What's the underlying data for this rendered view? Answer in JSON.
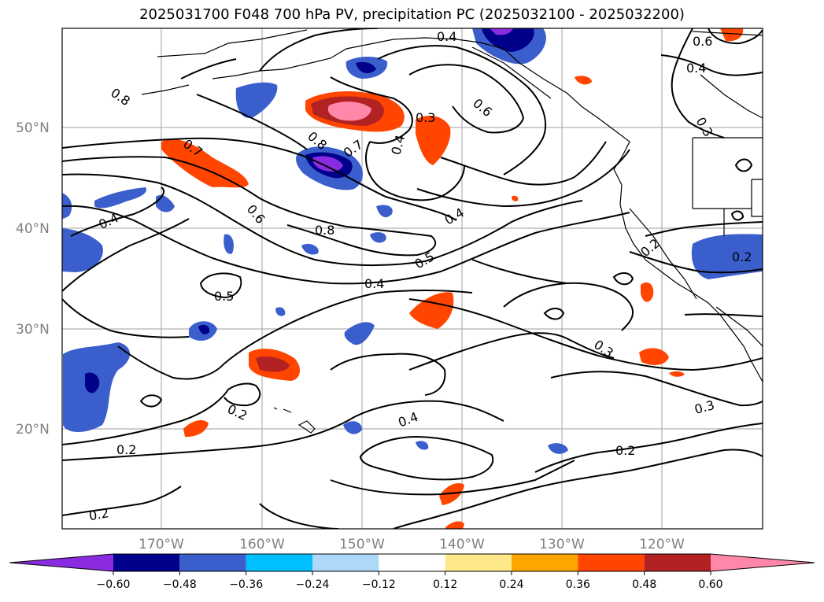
{
  "title": "2025031700 F048 700 hPa PV, precipitation PC (2025032100 - 2025032200)",
  "lat_labels": [
    "50°N",
    "40°N",
    "30°N",
    "20°N"
  ],
  "lon_labels": [
    "170°W",
    "160°W",
    "150°W",
    "140°W",
    "130°W",
    "120°W"
  ],
  "contour_labels": [
    "0.4",
    "0.6",
    "0.4",
    "0.3",
    "0.8",
    "0.7",
    "0.8",
    "0.7",
    "0.4",
    "0.3",
    "0.6",
    "0.4",
    "0.6",
    "0.8",
    "0.5",
    "0.4",
    "0.4",
    "0.2",
    "0.5",
    "0.3",
    "0.2",
    "0.2",
    "0.4",
    "0.2",
    "0.3",
    "0.2"
  ],
  "colorbar": {
    "colors": [
      "#8a2be2",
      "#00008b",
      "#3a5fcd",
      "#00bfff",
      "#add8f7",
      "#ffffff",
      "#ffe88a",
      "#ffa500",
      "#ff4500",
      "#b22222",
      "#ff88aa"
    ],
    "tick_labels": [
      "−0.60",
      "−0.48",
      "−0.36",
      "−0.24",
      "−0.12",
      "0.12",
      "0.24",
      "0.36",
      "0.48",
      "0.60"
    ]
  }
}
